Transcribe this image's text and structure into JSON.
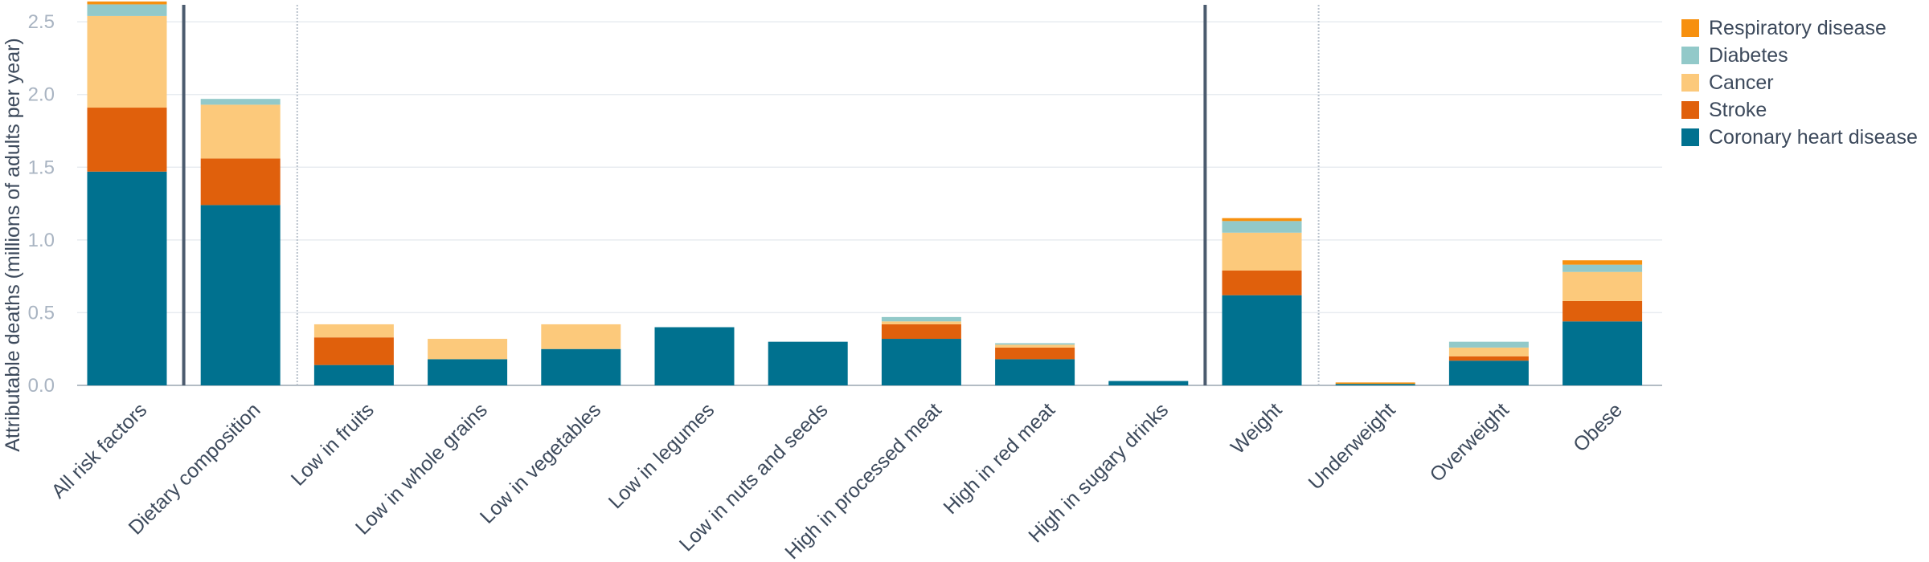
{
  "chart_data": {
    "type": "bar",
    "stacked": true,
    "title": "",
    "xlabel": "",
    "ylabel": "Attributable deaths (millions of adults per year)",
    "ylim": [
      0,
      2.65
    ],
    "yticks": [
      0.0,
      0.5,
      1.0,
      1.5,
      2.0,
      2.5
    ],
    "ytick_labels": [
      "0.0",
      "0.5",
      "1.0",
      "1.5",
      "2.0",
      "2.5"
    ],
    "grid": true,
    "legend_position": "top-right",
    "categories": [
      "All risk factors",
      "Dietary composition",
      "Low in fruits",
      "Low in whole grains",
      "Low in vegetables",
      "Low in legumes",
      "Low in nuts and seeds",
      "High in processed meat",
      "High in red meat",
      "High in sugary drinks",
      "Weight",
      "Underweight",
      "Overweight",
      "Obese"
    ],
    "series": [
      {
        "name": "Coronary heart disease",
        "color": "#00718f",
        "values": [
          1.47,
          1.24,
          0.14,
          0.18,
          0.25,
          0.4,
          0.3,
          0.32,
          0.18,
          0.03,
          0.62,
          0.01,
          0.17,
          0.44
        ]
      },
      {
        "name": "Stroke",
        "color": "#e0600c",
        "values": [
          0.44,
          0.32,
          0.19,
          0.0,
          0.0,
          0.0,
          0.0,
          0.1,
          0.08,
          0.0,
          0.17,
          0.0,
          0.03,
          0.14
        ]
      },
      {
        "name": "Cancer",
        "color": "#fcc97b",
        "values": [
          0.63,
          0.37,
          0.09,
          0.14,
          0.17,
          0.0,
          0.0,
          0.02,
          0.02,
          0.0,
          0.26,
          0.0,
          0.06,
          0.2
        ]
      },
      {
        "name": "Diabetes",
        "color": "#92c9c9",
        "values": [
          0.08,
          0.04,
          0.0,
          0.0,
          0.0,
          0.0,
          0.0,
          0.03,
          0.01,
          0.0,
          0.08,
          0.0,
          0.04,
          0.05
        ]
      },
      {
        "name": "Respiratory disease",
        "color": "#f7900e",
        "values": [
          0.02,
          0.0,
          0.0,
          0.0,
          0.0,
          0.0,
          0.0,
          0.0,
          0.0,
          0.0,
          0.02,
          0.01,
          0.0,
          0.03
        ]
      }
    ],
    "legend_order": [
      "Respiratory disease",
      "Diabetes",
      "Cancer",
      "Stroke",
      "Coronary heart disease"
    ],
    "group_separators": [
      {
        "after_index": 0,
        "style": "solid",
        "color": "#4b5b6e"
      },
      {
        "after_index": 1,
        "style": "dotted",
        "color": "#b9c2cc"
      },
      {
        "after_index": 9,
        "style": "solid",
        "color": "#4b5b6e"
      },
      {
        "after_index": 10,
        "style": "dotted",
        "color": "#b9c2cc"
      }
    ]
  }
}
